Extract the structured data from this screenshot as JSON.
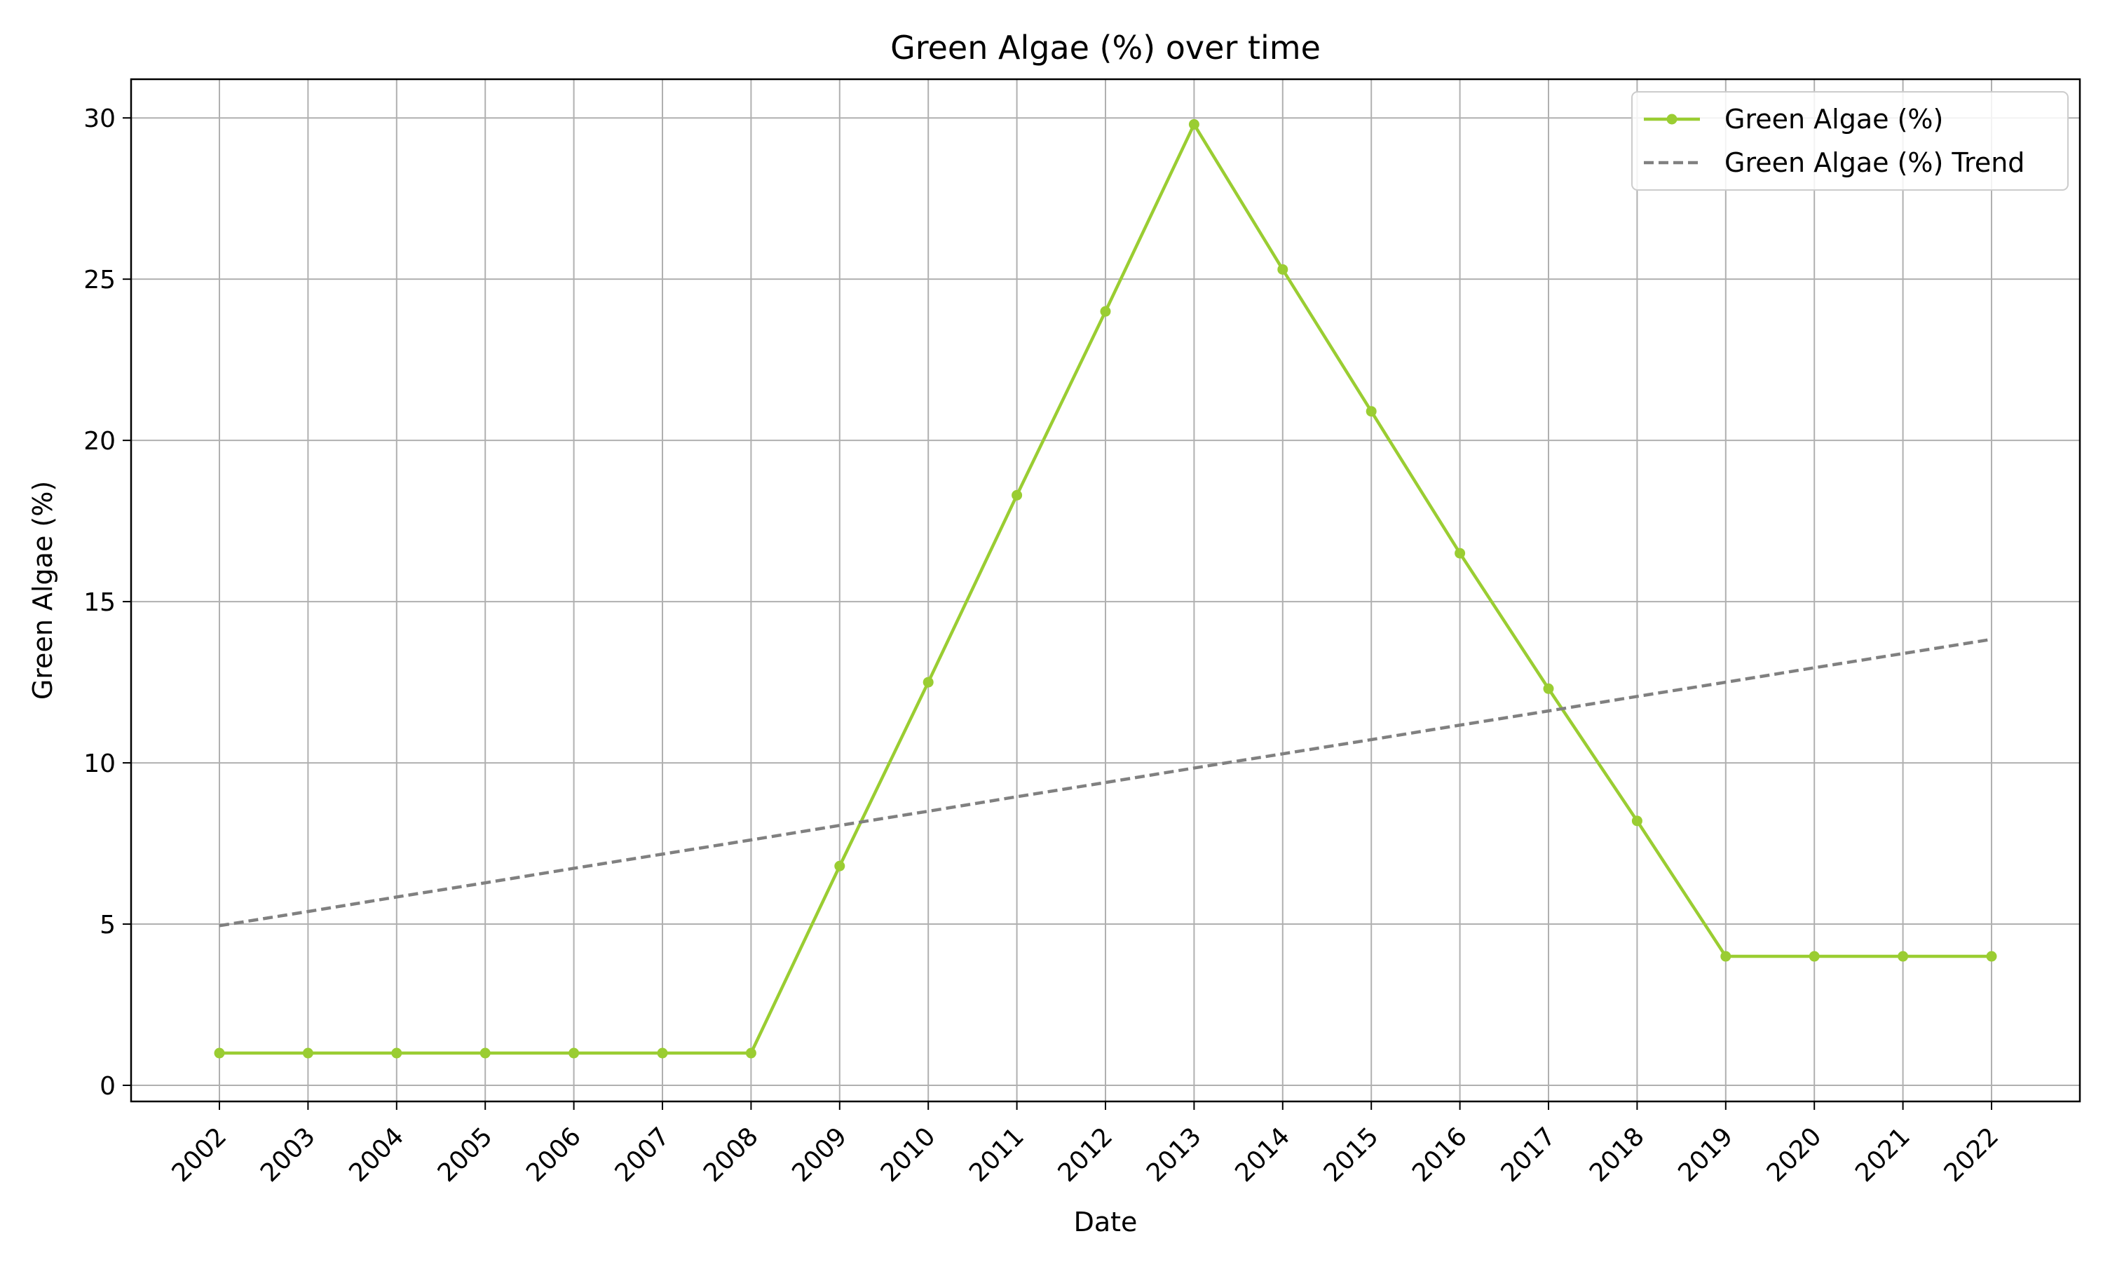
{
  "chart_data": {
    "type": "line",
    "title": "Green Algae (%) over time",
    "xlabel": "Date",
    "ylabel": "Green Algae (%)",
    "x": [
      "2002",
      "2003",
      "2004",
      "2005",
      "2006",
      "2007",
      "2008",
      "2009",
      "2010",
      "2011",
      "2012",
      "2013",
      "2014",
      "2015",
      "2016",
      "2017",
      "2018",
      "2019",
      "2020",
      "2021",
      "2022"
    ],
    "ylim": [
      -0.5,
      31.2
    ],
    "yticks": [
      0,
      5,
      10,
      15,
      20,
      25,
      30
    ],
    "grid": true,
    "legend_position": "top-right",
    "series": [
      {
        "name": "Green Algae (%)",
        "style": "solid",
        "marker": "circle",
        "color": "#9acd32",
        "values": [
          1.0,
          1.0,
          1.0,
          1.0,
          1.0,
          1.0,
          1.0,
          6.8,
          12.5,
          18.3,
          24.0,
          29.8,
          25.3,
          20.9,
          16.5,
          12.3,
          8.2,
          4.0,
          4.0,
          4.0,
          4.0
        ]
      },
      {
        "name": "Green Algae (%) Trend",
        "style": "dashed",
        "marker": "none",
        "color": "#808080",
        "values": [
          4.95,
          5.39,
          5.84,
          6.28,
          6.73,
          7.17,
          7.61,
          8.06,
          8.5,
          8.95,
          9.39,
          9.84,
          10.28,
          10.72,
          11.17,
          11.61,
          12.06,
          12.5,
          12.95,
          13.39,
          13.83
        ]
      }
    ]
  }
}
